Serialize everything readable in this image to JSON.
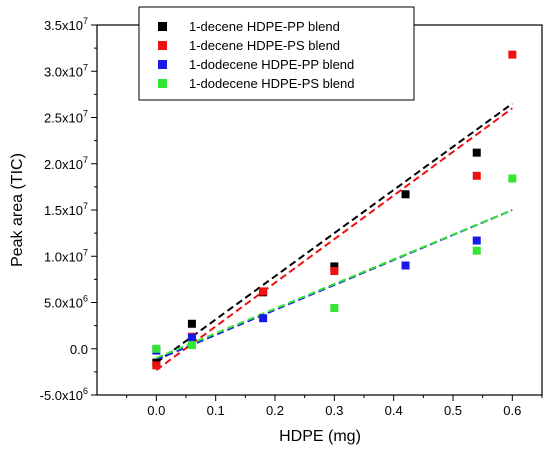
{
  "chart_data": {
    "type": "scatter",
    "title": "",
    "xlabel": "HDPE (mg)",
    "ylabel": "Peak area (TIC)",
    "xlim": [
      -0.1,
      0.65
    ],
    "ylim": [
      -5000000,
      35000000
    ],
    "x_ticks": [
      {
        "value": 0.0,
        "label": "0.0"
      },
      {
        "value": 0.1,
        "label": "0.1"
      },
      {
        "value": 0.2,
        "label": "0.2"
      },
      {
        "value": 0.3,
        "label": "0.3"
      },
      {
        "value": 0.4,
        "label": "0.4"
      },
      {
        "value": 0.5,
        "label": "0.5"
      },
      {
        "value": 0.6,
        "label": "0.6"
      }
    ],
    "y_ticks": [
      {
        "value": -5000000,
        "mantissa": "-5.0x10",
        "exp": "6"
      },
      {
        "value": 0,
        "mantissa": "0.0",
        "exp": ""
      },
      {
        "value": 5000000,
        "mantissa": "5.0x10",
        "exp": "6"
      },
      {
        "value": 10000000,
        "mantissa": "1.0x10",
        "exp": "7"
      },
      {
        "value": 15000000,
        "mantissa": "1.5x10",
        "exp": "7"
      },
      {
        "value": 20000000,
        "mantissa": "2.0x10",
        "exp": "7"
      },
      {
        "value": 25000000,
        "mantissa": "2.5x10",
        "exp": "7"
      },
      {
        "value": 30000000,
        "mantissa": "3.0x10",
        "exp": "7"
      },
      {
        "value": 35000000,
        "mantissa": "3.5x10",
        "exp": "7"
      }
    ],
    "grid": false,
    "legend_position": "top-center",
    "series": [
      {
        "name": "1-decene HDPE-PP blend",
        "color": "#000000",
        "points": [
          [
            0.0,
            -1500000
          ],
          [
            0.06,
            2700000
          ],
          [
            0.18,
            6100000
          ],
          [
            0.3,
            8900000
          ],
          [
            0.42,
            16700000
          ],
          [
            0.54,
            21200000
          ]
        ],
        "fit": [
          [
            0.0,
            -1500000
          ],
          [
            0.6,
            26500000
          ]
        ]
      },
      {
        "name": "1-decene HDPE-PS blend",
        "color": "#ee1111",
        "points": [
          [
            0.0,
            -1800000
          ],
          [
            0.06,
            1300000
          ],
          [
            0.18,
            6200000
          ],
          [
            0.3,
            8400000
          ],
          [
            0.54,
            18700000
          ],
          [
            0.6,
            31800000
          ]
        ],
        "fit": [
          [
            0.0,
            -2300000
          ],
          [
            0.6,
            26000000
          ]
        ]
      },
      {
        "name": "1-dodecene HDPE-PP blend",
        "color": "#1a1ae6",
        "points": [
          [
            0.0,
            -200000
          ],
          [
            0.06,
            1200000
          ],
          [
            0.18,
            3300000
          ],
          [
            0.42,
            9000000
          ],
          [
            0.54,
            11700000
          ]
        ],
        "fit": [
          [
            0.0,
            -1200000
          ],
          [
            0.6,
            15000000
          ]
        ]
      },
      {
        "name": "1-dodecene HDPE-PS blend",
        "color": "#33e633",
        "points": [
          [
            0.0,
            0
          ],
          [
            0.06,
            400000
          ],
          [
            0.3,
            4400000
          ],
          [
            0.54,
            10600000
          ],
          [
            0.6,
            18400000
          ]
        ],
        "fit": [
          [
            0.0,
            -1000000
          ],
          [
            0.6,
            15000000
          ]
        ]
      }
    ]
  }
}
